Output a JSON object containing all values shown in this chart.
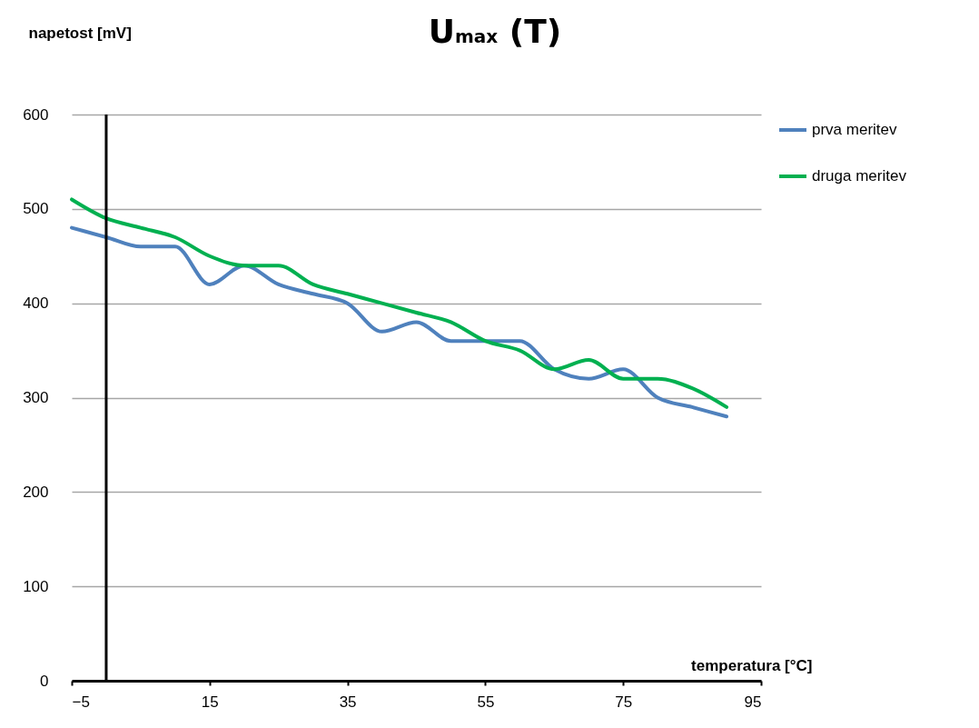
{
  "chart_data": {
    "type": "line",
    "title": "U$_{max}$ (T)",
    "xlabel": "temperatura [°C]",
    "ylabel": "napetost [mV]",
    "x": [
      -5,
      0,
      5,
      10,
      15,
      20,
      25,
      30,
      35,
      40,
      45,
      50,
      55,
      60,
      65,
      70,
      75,
      80,
      85,
      90
    ],
    "series": [
      {
        "name": "prva meritev",
        "color": "#4f81bd",
        "values": [
          480,
          470,
          460,
          460,
          420,
          440,
          420,
          410,
          400,
          370,
          380,
          360,
          360,
          360,
          330,
          320,
          330,
          300,
          290,
          280
        ]
      },
      {
        "name": "druga meritev",
        "color": "#00b050",
        "values": [
          510,
          490,
          480,
          470,
          450,
          440,
          440,
          420,
          410,
          400,
          390,
          380,
          360,
          350,
          330,
          340,
          320,
          320,
          310,
          290
        ]
      }
    ],
    "xlim": [
      -5,
      95
    ],
    "xticks": [
      -5,
      15,
      35,
      55,
      75,
      95
    ],
    "ylim": [
      0,
      600
    ],
    "yticks": [
      0,
      100,
      200,
      300,
      400,
      500,
      600
    ],
    "grid": "y",
    "legend": "right",
    "marker": "none",
    "line_style": "solid",
    "ref_lines": [
      {
        "axis": "x",
        "value": 0,
        "color": "#000000"
      }
    ]
  }
}
